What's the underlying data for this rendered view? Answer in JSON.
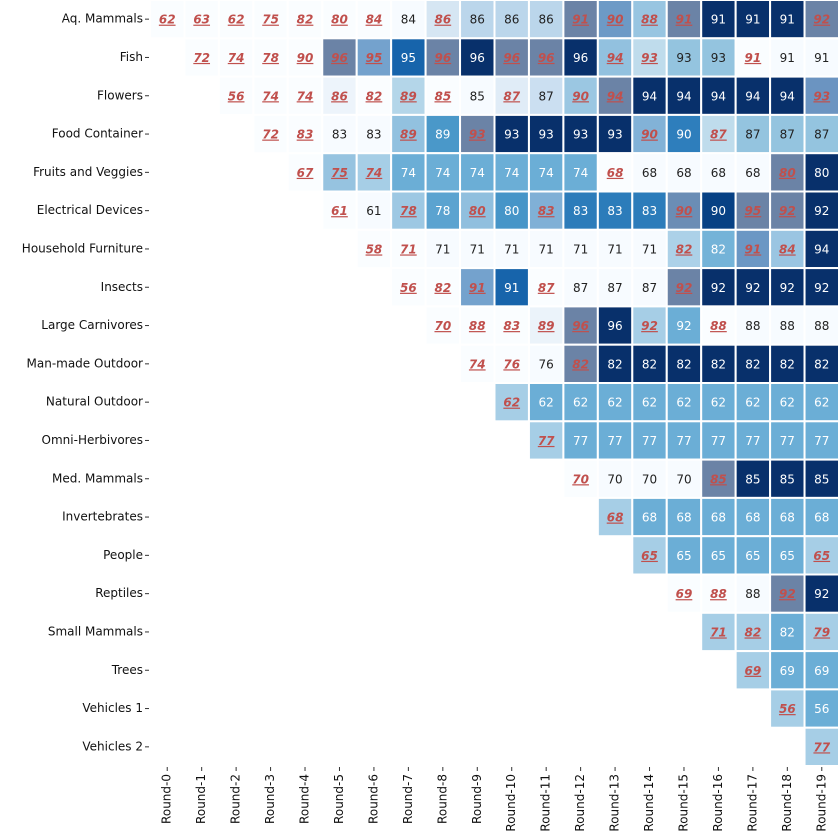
{
  "chart_data": {
    "type": "heatmap",
    "colormap": "Blues",
    "rows": [
      "Aq. Mammals",
      "Fish",
      "Flowers",
      "Food Container",
      "Fruits and Veggies",
      "Electrical Devices",
      "Household Furniture",
      "Insects",
      "Large Carnivores",
      "Man-made Outdoor",
      "Natural Outdoor",
      "Omni-Herbivores",
      "Med. Mammals",
      "Invertebrates",
      "People",
      "Reptiles",
      "Small Mammals",
      "Trees",
      "Vehicles 1",
      "Vehicles 2"
    ],
    "columns": [
      "Round-0",
      "Round-1",
      "Round-2",
      "Round-3",
      "Round-4",
      "Round-5",
      "Round-6",
      "Round-7",
      "Round-8",
      "Round-9",
      "Round-10",
      "Round-11",
      "Round-12",
      "Round-13",
      "Round-14",
      "Round-15",
      "Round-16",
      "Round-17",
      "Round-18",
      "Round-19"
    ],
    "values": [
      [
        62,
        63,
        62,
        75,
        82,
        80,
        84,
        84,
        86,
        86,
        86,
        86,
        91,
        90,
        88,
        91,
        91,
        91,
        91,
        92
      ],
      [
        null,
        72,
        74,
        78,
        90,
        96,
        95,
        95,
        96,
        96,
        96,
        96,
        96,
        94,
        93,
        93,
        93,
        91,
        91,
        91
      ],
      [
        null,
        null,
        56,
        74,
        74,
        86,
        82,
        89,
        85,
        85,
        87,
        87,
        90,
        94,
        94,
        94,
        94,
        94,
        94,
        93
      ],
      [
        null,
        null,
        null,
        72,
        83,
        83,
        83,
        89,
        89,
        93,
        93,
        93,
        93,
        93,
        90,
        90,
        87,
        87,
        87,
        87
      ],
      [
        null,
        null,
        null,
        null,
        67,
        75,
        74,
        74,
        74,
        74,
        74,
        74,
        74,
        68,
        68,
        68,
        68,
        68,
        80,
        80
      ],
      [
        null,
        null,
        null,
        null,
        null,
        61,
        61,
        78,
        78,
        80,
        80,
        83,
        83,
        83,
        83,
        90,
        90,
        95,
        92,
        92
      ],
      [
        null,
        null,
        null,
        null,
        null,
        null,
        58,
        71,
        71,
        71,
        71,
        71,
        71,
        71,
        71,
        82,
        82,
        91,
        84,
        94
      ],
      [
        null,
        null,
        null,
        null,
        null,
        null,
        null,
        56,
        82,
        91,
        91,
        87,
        87,
        87,
        87,
        92,
        92,
        92,
        92,
        92
      ],
      [
        null,
        null,
        null,
        null,
        null,
        null,
        null,
        null,
        70,
        88,
        83,
        89,
        96,
        96,
        92,
        92,
        88,
        88,
        88,
        88
      ],
      [
        null,
        null,
        null,
        null,
        null,
        null,
        null,
        null,
        null,
        74,
        76,
        76,
        82,
        82,
        82,
        82,
        82,
        82,
        82,
        82
      ],
      [
        null,
        null,
        null,
        null,
        null,
        null,
        null,
        null,
        null,
        null,
        62,
        62,
        62,
        62,
        62,
        62,
        62,
        62,
        62,
        62
      ],
      [
        null,
        null,
        null,
        null,
        null,
        null,
        null,
        null,
        null,
        null,
        null,
        77,
        77,
        77,
        77,
        77,
        77,
        77,
        77,
        77
      ],
      [
        null,
        null,
        null,
        null,
        null,
        null,
        null,
        null,
        null,
        null,
        null,
        null,
        70,
        70,
        70,
        70,
        85,
        85,
        85,
        85
      ],
      [
        null,
        null,
        null,
        null,
        null,
        null,
        null,
        null,
        null,
        null,
        null,
        null,
        null,
        68,
        68,
        68,
        68,
        68,
        68,
        68
      ],
      [
        null,
        null,
        null,
        null,
        null,
        null,
        null,
        null,
        null,
        null,
        null,
        null,
        null,
        null,
        65,
        65,
        65,
        65,
        65,
        65
      ],
      [
        null,
        null,
        null,
        null,
        null,
        null,
        null,
        null,
        null,
        null,
        null,
        null,
        null,
        null,
        null,
        69,
        88,
        88,
        92,
        92
      ],
      [
        null,
        null,
        null,
        null,
        null,
        null,
        null,
        null,
        null,
        null,
        null,
        null,
        null,
        null,
        null,
        null,
        71,
        82,
        82,
        79
      ],
      [
        null,
        null,
        null,
        null,
        null,
        null,
        null,
        null,
        null,
        null,
        null,
        null,
        null,
        null,
        null,
        null,
        null,
        69,
        69,
        69
      ],
      [
        null,
        null,
        null,
        null,
        null,
        null,
        null,
        null,
        null,
        null,
        null,
        null,
        null,
        null,
        null,
        null,
        null,
        null,
        56,
        56
      ],
      [
        null,
        null,
        null,
        null,
        null,
        null,
        null,
        null,
        null,
        null,
        null,
        null,
        null,
        null,
        null,
        null,
        null,
        null,
        null,
        77
      ]
    ],
    "highlighted": [
      [
        true,
        true,
        true,
        true,
        true,
        true,
        true,
        false,
        true,
        false,
        false,
        false,
        true,
        true,
        true,
        true,
        false,
        false,
        false,
        true
      ],
      [
        false,
        true,
        true,
        true,
        true,
        true,
        true,
        false,
        true,
        false,
        true,
        true,
        false,
        true,
        true,
        false,
        false,
        true,
        false,
        false
      ],
      [
        false,
        false,
        true,
        true,
        true,
        true,
        true,
        true,
        true,
        false,
        true,
        false,
        true,
        true,
        false,
        false,
        false,
        false,
        false,
        true
      ],
      [
        false,
        false,
        false,
        true,
        true,
        false,
        false,
        true,
        false,
        true,
        false,
        false,
        false,
        false,
        true,
        false,
        true,
        false,
        false,
        false
      ],
      [
        false,
        false,
        false,
        false,
        true,
        true,
        true,
        false,
        false,
        false,
        false,
        false,
        false,
        true,
        false,
        false,
        false,
        false,
        true,
        false
      ],
      [
        false,
        false,
        false,
        false,
        false,
        true,
        false,
        true,
        false,
        true,
        false,
        true,
        false,
        false,
        false,
        true,
        false,
        true,
        true,
        false
      ],
      [
        false,
        false,
        false,
        false,
        false,
        false,
        true,
        true,
        false,
        false,
        false,
        false,
        false,
        false,
        false,
        true,
        false,
        true,
        true,
        false
      ],
      [
        false,
        false,
        false,
        false,
        false,
        false,
        false,
        true,
        true,
        true,
        false,
        true,
        false,
        false,
        false,
        true,
        false,
        false,
        false,
        false
      ],
      [
        false,
        false,
        false,
        false,
        false,
        false,
        false,
        false,
        true,
        true,
        true,
        true,
        true,
        false,
        true,
        false,
        true,
        false,
        false,
        false
      ],
      [
        false,
        false,
        false,
        false,
        false,
        false,
        false,
        false,
        false,
        true,
        true,
        false,
        true,
        false,
        false,
        false,
        false,
        false,
        false,
        false
      ],
      [
        false,
        false,
        false,
        false,
        false,
        false,
        false,
        false,
        false,
        false,
        true,
        false,
        false,
        false,
        false,
        false,
        false,
        false,
        false,
        false
      ],
      [
        false,
        false,
        false,
        false,
        false,
        false,
        false,
        false,
        false,
        false,
        false,
        true,
        false,
        false,
        false,
        false,
        false,
        false,
        false,
        false
      ],
      [
        false,
        false,
        false,
        false,
        false,
        false,
        false,
        false,
        false,
        false,
        false,
        false,
        true,
        false,
        false,
        false,
        true,
        false,
        false,
        false
      ],
      [
        false,
        false,
        false,
        false,
        false,
        false,
        false,
        false,
        false,
        false,
        false,
        false,
        false,
        true,
        false,
        false,
        false,
        false,
        false,
        false
      ],
      [
        false,
        false,
        false,
        false,
        false,
        false,
        false,
        false,
        false,
        false,
        false,
        false,
        false,
        false,
        true,
        false,
        false,
        false,
        false,
        true
      ],
      [
        false,
        false,
        false,
        false,
        false,
        false,
        false,
        false,
        false,
        false,
        false,
        false,
        false,
        false,
        false,
        true,
        true,
        false,
        true,
        false
      ],
      [
        false,
        false,
        false,
        false,
        false,
        false,
        false,
        false,
        false,
        false,
        false,
        false,
        false,
        false,
        false,
        false,
        true,
        true,
        false,
        true
      ],
      [
        false,
        false,
        false,
        false,
        false,
        false,
        false,
        false,
        false,
        false,
        false,
        false,
        false,
        false,
        false,
        false,
        false,
        true,
        false,
        false
      ],
      [
        false,
        false,
        false,
        false,
        false,
        false,
        false,
        false,
        false,
        false,
        false,
        false,
        false,
        false,
        false,
        false,
        false,
        false,
        true,
        false
      ],
      [
        false,
        false,
        false,
        false,
        false,
        false,
        false,
        false,
        false,
        false,
        false,
        false,
        false,
        false,
        false,
        false,
        false,
        false,
        false,
        true
      ]
    ]
  }
}
